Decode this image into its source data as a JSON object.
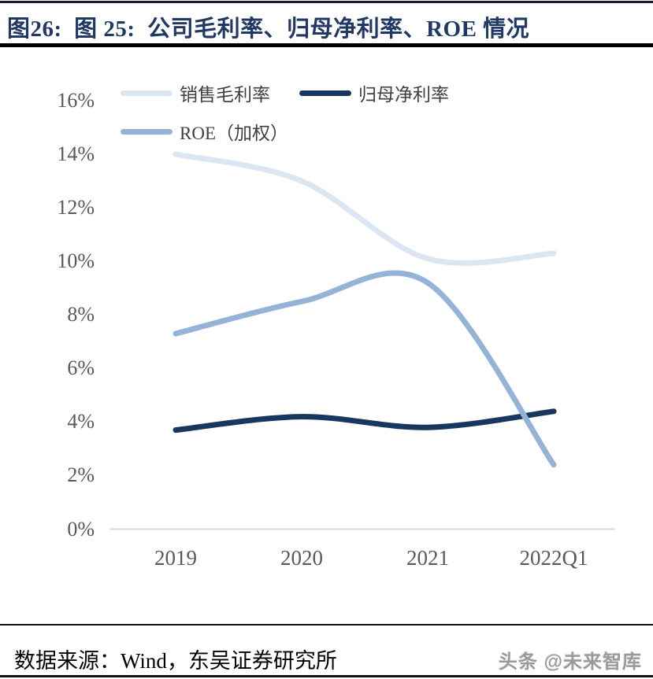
{
  "header": {
    "title": "图26:  图 25:  公司毛利率、归母净利率、ROE 情况"
  },
  "chart_data": {
    "type": "line",
    "smooth": true,
    "grid": false,
    "legend_position": "top-left",
    "categories": [
      "2019",
      "2020",
      "2021",
      "2022Q1"
    ],
    "series": [
      {
        "key": "gross-margin",
        "name": "销售毛利率",
        "color": "#dce6f2",
        "values": [
          14.0,
          13.0,
          10.1,
          10.3
        ]
      },
      {
        "key": "net-margin",
        "name": "归母净利率",
        "color": "#17375e",
        "values": [
          3.7,
          4.2,
          3.8,
          4.4
        ]
      },
      {
        "key": "roe-weighted",
        "name": "ROE（加权）",
        "color": "#95b3d7",
        "values": [
          7.3,
          8.5,
          9.2,
          2.4
        ]
      }
    ],
    "ylabel": "",
    "xlabel": "",
    "ylim": [
      0,
      16
    ],
    "yticks": [
      "16%",
      "14%",
      "12%",
      "10%",
      "8%",
      "6%",
      "4%",
      "2%",
      "0%"
    ],
    "axis_line_color": "#d9d9d9"
  },
  "footer": {
    "source": "数据来源：Wind，东吴证券研究所",
    "watermark": "头条 @未来智库"
  }
}
